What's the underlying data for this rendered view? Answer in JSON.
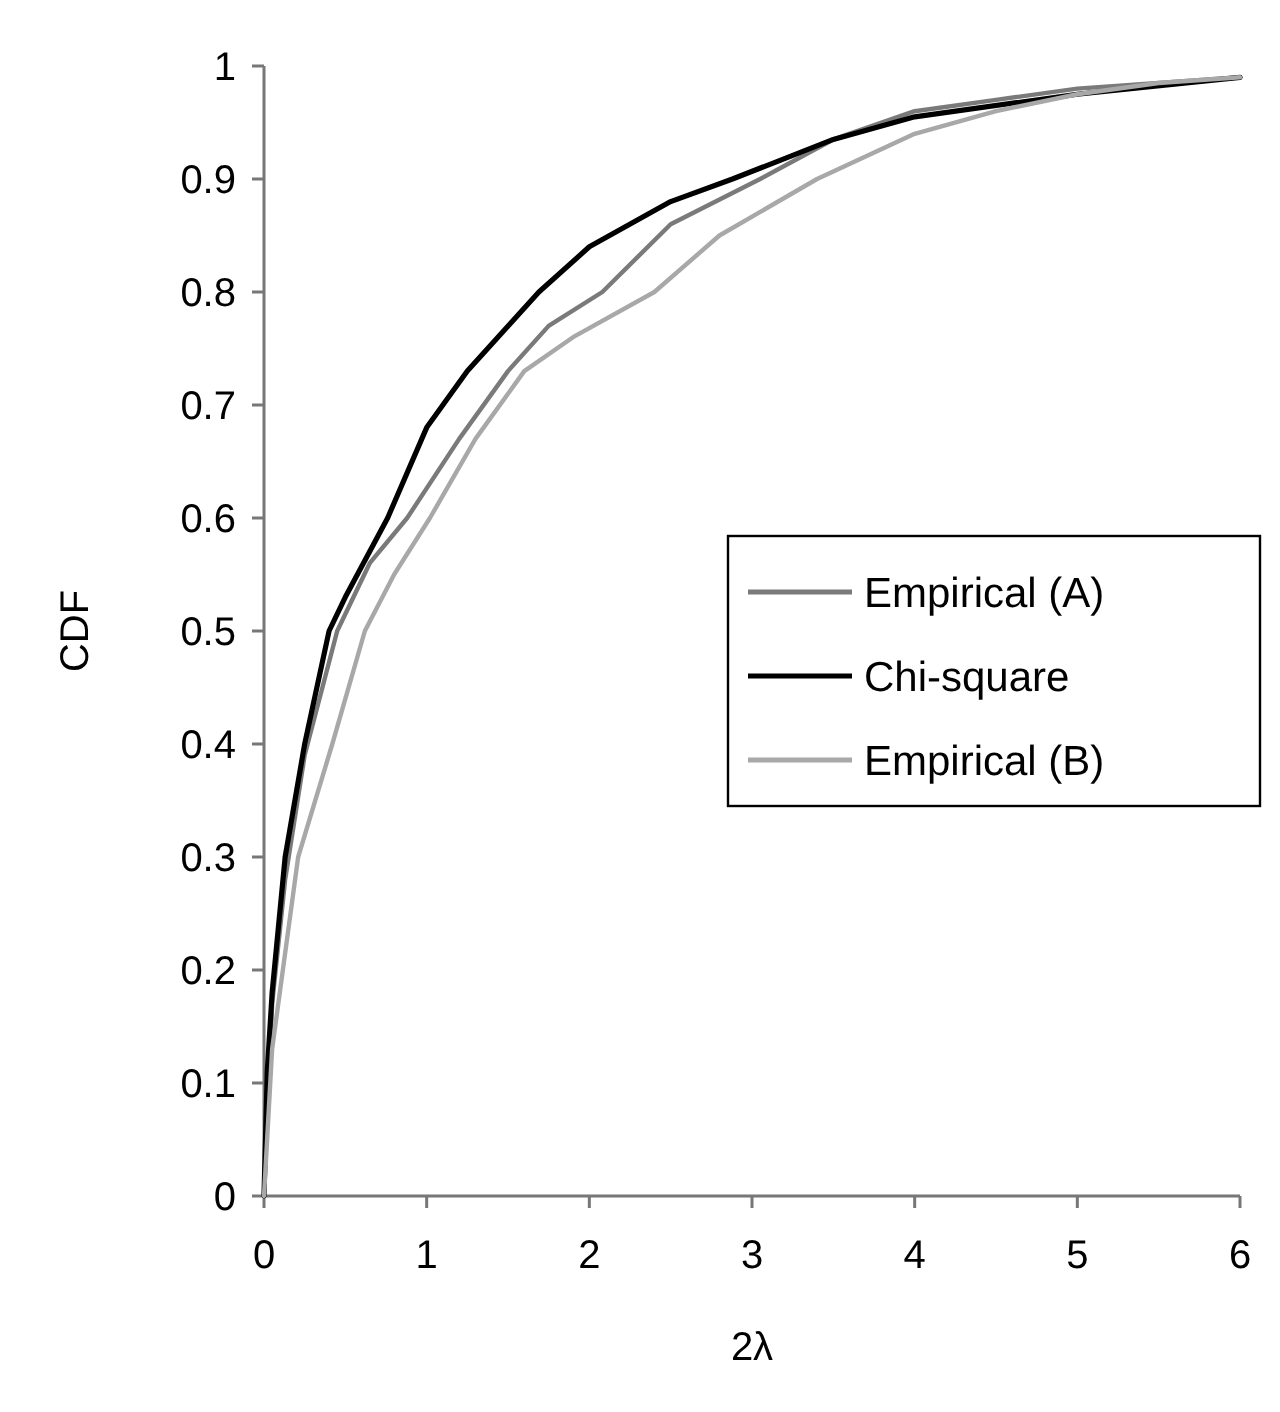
{
  "chart_data": {
    "type": "line",
    "xlabel": "2λ",
    "ylabel": "CDF",
    "xlim": [
      0,
      6
    ],
    "ylim": [
      0,
      1
    ],
    "xticks": [
      0,
      1,
      2,
      3,
      4,
      5,
      6
    ],
    "yticks": [
      0,
      0.1,
      0.2,
      0.3,
      0.4,
      0.5,
      0.6,
      0.7,
      0.8,
      0.9,
      1
    ],
    "grid": false,
    "legend": "right",
    "marker": "none",
    "line_style": "solid",
    "series": [
      {
        "name": "Empirical (A)",
        "color": "#7a7a7a",
        "x": [
          0,
          0.05,
          0.13,
          0.25,
          0.45,
          0.65,
          0.88,
          1.2,
          1.5,
          1.75,
          2.08,
          2.5,
          3.05,
          3.5,
          4,
          4.5,
          5,
          5.5,
          6
        ],
        "values": [
          0,
          0.17,
          0.28,
          0.39,
          0.5,
          0.56,
          0.6,
          0.67,
          0.73,
          0.77,
          0.8,
          0.86,
          0.9,
          0.935,
          0.96,
          0.97,
          0.98,
          0.985,
          0.99
        ]
      },
      {
        "name": "Chi-square",
        "color": "#000000",
        "x": [
          0,
          0.02,
          0.05,
          0.13,
          0.25,
          0.4,
          0.5,
          0.76,
          1,
          1.25,
          1.69,
          2,
          2.5,
          2.88,
          3.5,
          4,
          5,
          6
        ],
        "values": [
          0,
          0.11,
          0.18,
          0.3,
          0.4,
          0.5,
          0.53,
          0.6,
          0.68,
          0.73,
          0.8,
          0.84,
          0.88,
          0.9,
          0.935,
          0.955,
          0.975,
          0.99
        ]
      },
      {
        "name": "Empirical (B)",
        "color": "#a8a8a8",
        "x": [
          0,
          0.05,
          0.21,
          0.42,
          0.62,
          0.8,
          1.02,
          1.3,
          1.6,
          1.9,
          2.4,
          2.8,
          3.4,
          4,
          4.5,
          5,
          5.5,
          6
        ],
        "values": [
          0,
          0.13,
          0.3,
          0.4,
          0.5,
          0.55,
          0.6,
          0.67,
          0.73,
          0.76,
          0.8,
          0.85,
          0.9,
          0.94,
          0.96,
          0.975,
          0.985,
          0.99
        ]
      }
    ]
  }
}
